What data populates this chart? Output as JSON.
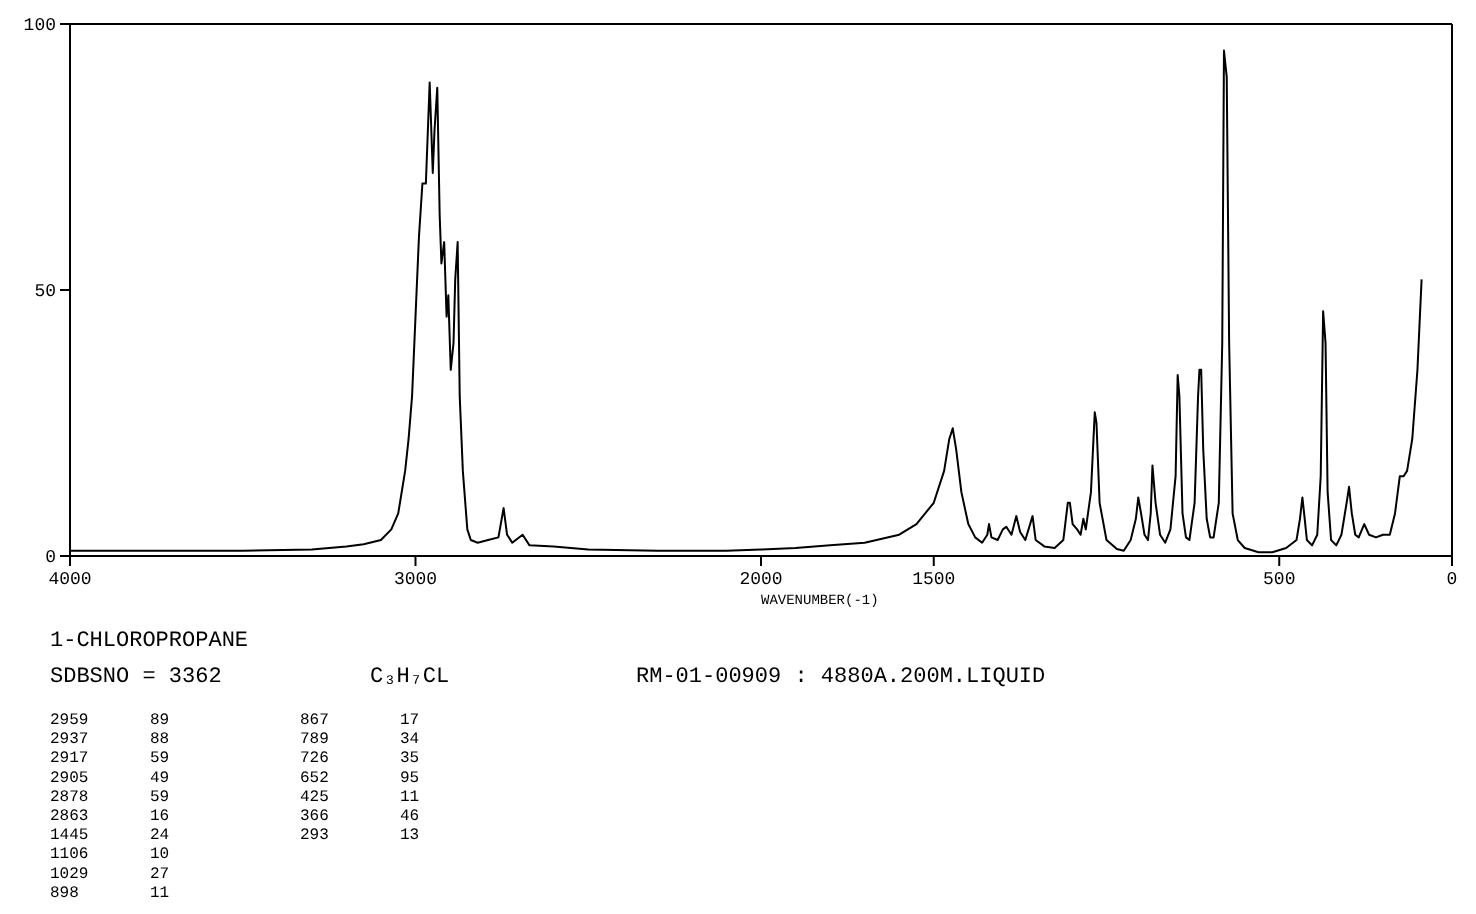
{
  "chart_data": [
    {
      "type": "line",
      "title": "1-CHLOROPROPANE",
      "xlim": [
        4000,
        2000
      ],
      "xticks": [
        4000,
        3000,
        2000
      ],
      "ylim": [
        0,
        100
      ],
      "yticks": [
        0,
        50,
        100
      ],
      "annotations": [
        "SDBSNO = 3362",
        "C₃H₇CL",
        "RM-01-00909 : 4880A.200M.LIQUID",
        "2959 89",
        "2937 88",
        "2917 59",
        "2905 49",
        "2878 59",
        "2863 16",
        "1445 24",
        "1106 10",
        "1029 27",
        "898 11",
        "867 17",
        "789 34",
        "726 35",
        "652 95",
        "425 11",
        "366 46",
        "293 13"
      ],
      "series": [
        {
          "color": "#000000",
          "x": [
            4000,
            3500,
            3300,
            3200,
            3150,
            3100,
            3070,
            3050,
            3030,
            3020,
            3010,
            3000,
            2990,
            2980,
            2970,
            2959,
            2950,
            2945,
            2937,
            2930,
            2925,
            2917,
            2910,
            2905,
            2898,
            2890,
            2885,
            2878,
            2872,
            2863,
            2850,
            2840,
            2820,
            2790,
            2760,
            2745,
            2735,
            2720,
            2690,
            2670,
            2600,
            2500,
            2300,
            2100,
            2000
          ],
          "values": [
            1,
            1,
            1.2,
            1.8,
            2.2,
            3,
            5,
            8,
            16,
            22,
            30,
            45,
            60,
            70,
            70,
            89,
            72,
            80,
            88,
            64,
            55,
            59,
            45,
            49,
            35,
            40,
            52,
            59,
            30,
            16,
            5,
            3,
            2.5,
            3,
            3.5,
            9,
            4,
            2.5,
            4,
            2,
            1.8,
            1.2,
            1,
            1,
            1.2
          ]
        }
      ]
    },
    {
      "type": "line",
      "xlabel": "WAVENUMBER(-1)",
      "xlim": [
        2000,
        0
      ],
      "xticks": [
        {
          "value": 2000,
          "label": null
        },
        1500,
        500,
        0
      ],
      "ylim": [
        0,
        100
      ],
      "yticks": [
        0,
        50,
        100
      ],
      "tick_labels": "x",
      "series": [
        {
          "color": "#000000",
          "x": [
            2000,
            1900,
            1800,
            1700,
            1600,
            1550,
            1500,
            1470,
            1455,
            1445,
            1435,
            1420,
            1400,
            1380,
            1360,
            1345,
            1340,
            1333,
            1315,
            1300,
            1290,
            1275,
            1261,
            1250,
            1235,
            1214,
            1205,
            1180,
            1150,
            1125,
            1112,
            1106,
            1098,
            1085,
            1075,
            1067,
            1060,
            1045,
            1034,
            1029,
            1020,
            1000,
            970,
            950,
            930,
            915,
            908,
            900,
            890,
            880,
            872,
            867,
            858,
            845,
            830,
            815,
            800,
            794,
            789,
            780,
            770,
            760,
            745,
            735,
            731,
            726,
            720,
            710,
            700,
            690,
            675,
            665,
            660,
            652,
            645,
            635,
            620,
            600,
            560,
            520,
            480,
            450,
            440,
            433,
            428,
            420,
            405,
            390,
            380,
            373,
            366,
            360,
            350,
            335,
            320,
            305,
            298,
            290,
            280,
            270,
            254,
            240,
            220,
            200,
            180,
            165,
            151,
            140,
            130,
            115,
            100,
            88
          ],
          "values": [
            1.2,
            1.5,
            2,
            2.5,
            4,
            6,
            10,
            16,
            22,
            24,
            20,
            12,
            6,
            3.5,
            2.5,
            4,
            6,
            3.5,
            3,
            5,
            5.5,
            4,
            7.5,
            4.5,
            3,
            7.5,
            3,
            1.8,
            1.5,
            3,
            10,
            10,
            6,
            5,
            4,
            7,
            5,
            12,
            27,
            25,
            10,
            3,
            1.3,
            1,
            3,
            7,
            11,
            8,
            4,
            3,
            8,
            17,
            10,
            4,
            2.5,
            5,
            15,
            34,
            30,
            8,
            3.5,
            3,
            10,
            30,
            35,
            35,
            20,
            7,
            3.5,
            3.5,
            10,
            40,
            95,
            90,
            40,
            8,
            3,
            1.5,
            0.7,
            0.7,
            1.5,
            3,
            7,
            11,
            8,
            3,
            2,
            4,
            15,
            46,
            40,
            12,
            3,
            2,
            4,
            10,
            13,
            8,
            4,
            3.5,
            6,
            4,
            3.5,
            4,
            4,
            8,
            15,
            15,
            16,
            22,
            35,
            52
          ]
        }
      ]
    }
  ]
}
